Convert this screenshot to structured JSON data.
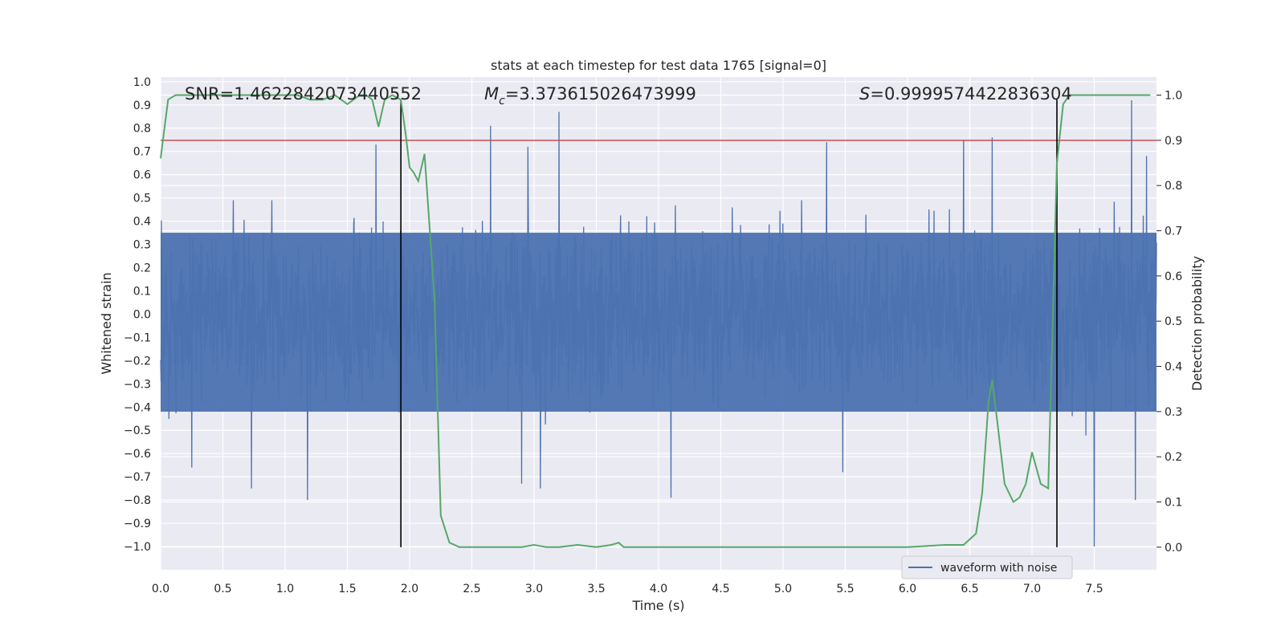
{
  "chart_data": {
    "type": "line",
    "title": "stats at each timestep for test data 1765 [signal=0]",
    "xlabel": "Time (s)",
    "ylabel": "Whitened strain",
    "y2label": "Detection probability",
    "xlim": [
      0,
      8
    ],
    "ylim": [
      -1.1,
      1.02
    ],
    "y2lim": [
      -0.05,
      1.04
    ],
    "x_ticks": [
      0.0,
      0.5,
      1.0,
      1.5,
      2.0,
      2.5,
      3.0,
      3.5,
      4.0,
      4.5,
      5.0,
      5.5,
      6.0,
      6.5,
      7.0,
      7.5
    ],
    "x_tick_labels": [
      "0.0",
      "0.5",
      "1.0",
      "1.5",
      "2.0",
      "2.5",
      "3.0",
      "3.5",
      "4.0",
      "4.5",
      "5.0",
      "5.5",
      "6.0",
      "6.5",
      "7.0",
      "7.5"
    ],
    "y_ticks": [
      1.0,
      0.9,
      0.8,
      0.7,
      0.6,
      0.5,
      0.4,
      0.3,
      0.2,
      0.1,
      0.0,
      -0.1,
      -0.2,
      -0.3,
      -0.4,
      -0.5,
      -0.6,
      -0.7,
      -0.8,
      -0.9,
      -1.0
    ],
    "y_tick_labels": [
      "1.0",
      "0.9",
      "0.8",
      "0.7",
      "0.6",
      "0.5",
      "0.4",
      "0.3",
      "0.2",
      "0.1",
      "0.0",
      "−0.1",
      "−0.2",
      "−0.3",
      "−0.4",
      "−0.5",
      "−0.6",
      "−0.7",
      "−0.8",
      "−0.9",
      "−1.0"
    ],
    "y2_ticks": [
      1.0,
      0.9,
      0.8,
      0.7,
      0.6,
      0.5,
      0.4,
      0.3,
      0.2,
      0.1,
      0.0
    ],
    "y2_tick_labels": [
      "1.0",
      "0.9",
      "0.8",
      "0.7",
      "0.6",
      "0.5",
      "0.4",
      "0.3",
      "0.2",
      "0.1",
      "0.0"
    ],
    "annotations": {
      "snr": "SNR=1.4622842073440552",
      "mc_symbol": "M",
      "mc_sub": "c",
      "mc_value": "=3.373615026473999",
      "s_symbol": "S",
      "s_value": "=0.9999574422836304"
    },
    "threshold": {
      "axis": "y2",
      "value": 0.9,
      "color": "#c44e52"
    },
    "vertical_lines": [
      1.93,
      7.2
    ],
    "legend": {
      "label": "waveform with noise",
      "placement": "lower-right",
      "color": "#4c72b0"
    },
    "series": [
      {
        "name": "waveform with noise",
        "axis": "y",
        "color": "#4c72b0",
        "kind": "noise",
        "t_range": [
          0,
          8
        ],
        "typical_envelope": [
          -0.42,
          0.35
        ],
        "notable_peaks": [
          {
            "t": 2.65,
            "v": 0.81
          },
          {
            "t": 3.2,
            "v": 0.87
          },
          {
            "t": 7.8,
            "v": 0.92
          },
          {
            "t": 1.73,
            "v": 0.73
          },
          {
            "t": 5.35,
            "v": 0.74
          },
          {
            "t": 6.45,
            "v": 0.75
          },
          {
            "t": 6.68,
            "v": 0.76
          },
          {
            "t": 7.92,
            "v": 0.68
          },
          {
            "t": 2.95,
            "v": 0.72
          },
          {
            "t": 7.5,
            "v": -1.0
          },
          {
            "t": 1.18,
            "v": -0.8
          },
          {
            "t": 4.1,
            "v": -0.79
          },
          {
            "t": 7.83,
            "v": -0.8
          },
          {
            "t": 0.73,
            "v": -0.75
          },
          {
            "t": 3.05,
            "v": -0.75
          },
          {
            "t": 0.25,
            "v": -0.66
          },
          {
            "t": 2.9,
            "v": -0.73
          },
          {
            "t": 5.48,
            "v": -0.68
          }
        ]
      },
      {
        "name": "detection probability",
        "axis": "y2",
        "color": "#55a868",
        "x": [
          0.0,
          0.06,
          0.12,
          0.2,
          0.4,
          0.6,
          0.8,
          1.0,
          1.1,
          1.2,
          1.3,
          1.4,
          1.5,
          1.6,
          1.65,
          1.7,
          1.75,
          1.8,
          1.86,
          1.93,
          1.97,
          2.0,
          2.03,
          2.07,
          2.12,
          2.2,
          2.25,
          2.32,
          2.4,
          2.5,
          2.7,
          2.9,
          3.0,
          3.1,
          3.2,
          3.35,
          3.5,
          3.62,
          3.68,
          3.72,
          3.8,
          3.9,
          4.0,
          4.3,
          4.5,
          4.7,
          5.0,
          5.5,
          6.0,
          6.3,
          6.45,
          6.55,
          6.6,
          6.65,
          6.68,
          6.72,
          6.78,
          6.85,
          6.9,
          6.95,
          7.0,
          7.07,
          7.13,
          7.2,
          7.25,
          7.3,
          7.5,
          7.8,
          7.95
        ],
        "y": [
          0.86,
          0.99,
          1.0,
          1.0,
          1.0,
          1.0,
          1.0,
          1.0,
          1.0,
          0.99,
          0.99,
          1.0,
          0.98,
          1.0,
          1.0,
          0.99,
          0.93,
          0.99,
          1.0,
          0.99,
          0.91,
          0.84,
          0.83,
          0.81,
          0.87,
          0.55,
          0.07,
          0.01,
          0.0,
          0.0,
          0.0,
          0.0,
          0.005,
          0.0,
          0.0,
          0.005,
          0.0,
          0.005,
          0.01,
          0.0,
          0.0,
          0.0,
          0.0,
          0.0,
          0.0,
          0.0,
          0.0,
          0.0,
          0.0,
          0.005,
          0.005,
          0.03,
          0.12,
          0.32,
          0.37,
          0.28,
          0.14,
          0.1,
          0.11,
          0.14,
          0.21,
          0.14,
          0.13,
          0.85,
          0.98,
          1.0,
          1.0,
          1.0,
          1.0
        ]
      }
    ]
  }
}
